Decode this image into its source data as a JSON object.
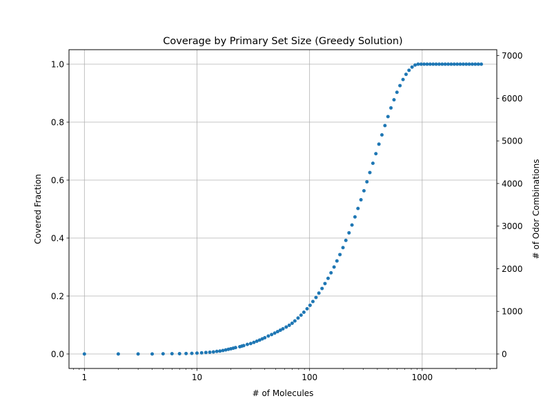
{
  "chart_data": {
    "type": "scatter",
    "title": "Coverage by Primary Set Size (Greedy Solution)",
    "xlabel": "# of Molecules",
    "ylabel": "Covered Fraction",
    "y2label": "# of Odor Combinations",
    "xscale": "log",
    "xlim": [
      0.73,
      4600
    ],
    "ylim": [
      -0.05,
      1.05
    ],
    "y2lim": [
      -340,
      7140
    ],
    "x_ticks": [
      1,
      10,
      100,
      1000
    ],
    "x_tick_labels": [
      "1",
      "10",
      "100",
      "1000"
    ],
    "y_ticks": [
      0.0,
      0.2,
      0.4,
      0.6,
      0.8,
      1.0
    ],
    "y_tick_labels": [
      "0.0",
      "0.2",
      "0.4",
      "0.6",
      "0.8",
      "1.0"
    ],
    "y2_ticks": [
      0,
      1000,
      2000,
      3000,
      4000,
      5000,
      6000,
      7000
    ],
    "y2_tick_labels": [
      "0",
      "1000",
      "2000",
      "3000",
      "4000",
      "5000",
      "6000",
      "7000"
    ],
    "grid": true,
    "marker_color": "#1f77b4",
    "series": [
      {
        "x": [
          1,
          2,
          3,
          4,
          5,
          6,
          7,
          8,
          9,
          10,
          11,
          12,
          13,
          14,
          15,
          16,
          17,
          18,
          19,
          20,
          21,
          22,
          24,
          25,
          26,
          28,
          30,
          32,
          34,
          36,
          38,
          40,
          43,
          46,
          49,
          52,
          55,
          58,
          62,
          66,
          70,
          74,
          79,
          84,
          89,
          95,
          101,
          107,
          114,
          121,
          129,
          137,
          146,
          155,
          165,
          175,
          186,
          198,
          210,
          224,
          238,
          253,
          269,
          286,
          304,
          323,
          343,
          365,
          388,
          413,
          439,
          467,
          497,
          528,
          562,
          597,
          635,
          676,
          719,
          764,
          813,
          865,
          920,
          978,
          1040,
          1106,
          1176,
          1251,
          1330,
          1415,
          1505,
          1600,
          1702,
          1810,
          1925,
          2047,
          2177,
          2315,
          2462,
          2618,
          2784,
          2961,
          3149,
          3350
        ],
        "y": [
          0.0,
          0.0,
          0.0,
          0.0,
          0.0005,
          0.0008,
          0.001,
          0.0015,
          0.002,
          0.003,
          0.004,
          0.005,
          0.006,
          0.007,
          0.009,
          0.01,
          0.012,
          0.014,
          0.016,
          0.018,
          0.02,
          0.022,
          0.025,
          0.027,
          0.029,
          0.033,
          0.036,
          0.04,
          0.044,
          0.048,
          0.052,
          0.056,
          0.062,
          0.067,
          0.072,
          0.077,
          0.082,
          0.087,
          0.093,
          0.099,
          0.106,
          0.114,
          0.124,
          0.134,
          0.144,
          0.156,
          0.168,
          0.181,
          0.195,
          0.21,
          0.226,
          0.243,
          0.261,
          0.28,
          0.3,
          0.321,
          0.343,
          0.367,
          0.392,
          0.418,
          0.445,
          0.473,
          0.502,
          0.532,
          0.563,
          0.594,
          0.626,
          0.658,
          0.691,
          0.724,
          0.756,
          0.788,
          0.819,
          0.849,
          0.877,
          0.903,
          0.926,
          0.947,
          0.965,
          0.979,
          0.99,
          0.997,
          1.0,
          1.0,
          1.0,
          1.0,
          1.0,
          1.0,
          1.0,
          1.0,
          1.0,
          1.0,
          1.0,
          1.0,
          1.0,
          1.0,
          1.0,
          1.0,
          1.0,
          1.0,
          1.0,
          1.0,
          1.0,
          1.0
        ]
      }
    ]
  }
}
